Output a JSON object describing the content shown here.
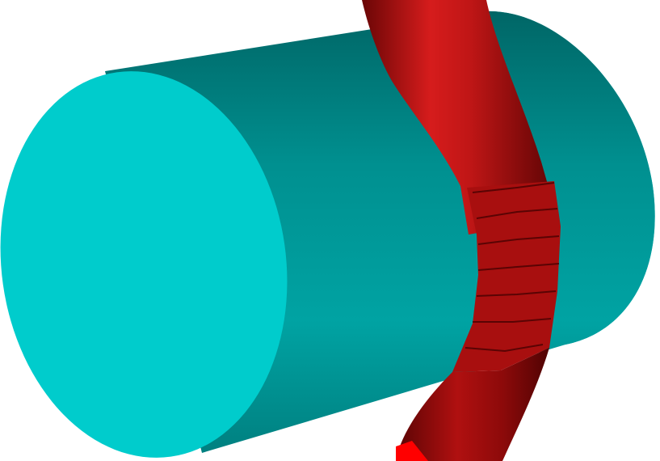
{
  "scene": {
    "objects": [
      {
        "kind": "cylinder",
        "color": "#00b3b3",
        "cap_color": "#00cccc"
      },
      {
        "kind": "tube",
        "color": "#b01212",
        "highlight_color": "#d62020",
        "end_color": "#ff0000"
      }
    ],
    "background_color": "#ffffff"
  }
}
